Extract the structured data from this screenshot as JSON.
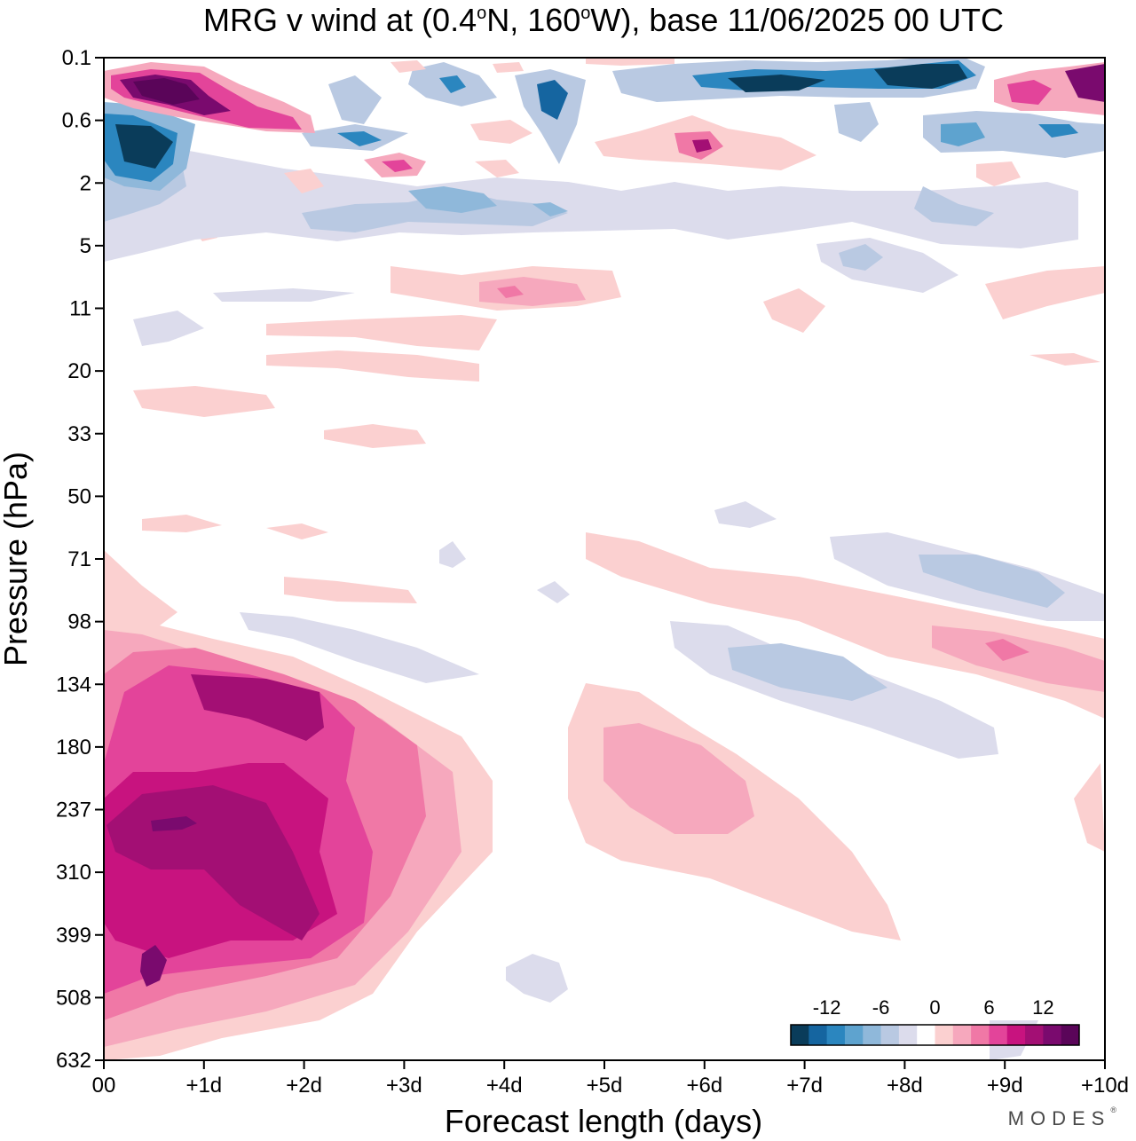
{
  "chart_data": {
    "type": "heatmap",
    "title": "MRG v wind at (0.4°N, 160°W),  base 11/06/2025  00 UTC",
    "title_parts": {
      "prefix": "MRG v wind at (0.4",
      "deg1": "o",
      "mid": "N, 160",
      "deg2": "o",
      "suffix": "W),  base 11/06/2025  00 UTC"
    },
    "xlabel": "Forecast length (days)",
    "ylabel": "Pressure (hPa)",
    "x_range_days": [
      0,
      10
    ],
    "x_tick_labels": [
      "00",
      "+1d",
      "+2d",
      "+3d",
      "+4d",
      "+5d",
      "+6d",
      "+7d",
      "+8d",
      "+9d",
      "+10d"
    ],
    "y_scale": "log-pressure (inverted)",
    "y_tick_labels": [
      "0.1",
      "0.6",
      "2",
      "5",
      "11",
      "20",
      "33",
      "50",
      "71",
      "98",
      "134",
      "180",
      "237",
      "310",
      "399",
      "508",
      "632"
    ],
    "colorbar": {
      "levels": [
        -16,
        -14,
        -12,
        -10,
        -8,
        -6,
        -4,
        -2,
        2,
        4,
        6,
        8,
        10,
        12,
        14,
        16
      ],
      "tick_labels": [
        "-12",
        "-6",
        "0",
        "6",
        "12"
      ],
      "tick_values": [
        -12,
        -6,
        0,
        6,
        12
      ],
      "colors": [
        "#0a3c5a",
        "#1565a0",
        "#2b86bf",
        "#5ea3cf",
        "#8fb8da",
        "#b9c9e2",
        "#dcdcec",
        "#ffffff",
        "#fbd0d0",
        "#f6a8bd",
        "#f078a6",
        "#e3449a",
        "#c8137f",
        "#a30f74",
        "#7a0a6e",
        "#5a0559"
      ]
    },
    "features": [
      {
        "name": "Upper negative core day 0.2-1.2",
        "day_range": [
          0.1,
          1.2
        ],
        "pressure_range_hPa": [
          0.6,
          3.5
        ],
        "peak": -16
      },
      {
        "name": "Upper positive core day 0.2-2",
        "day_range": [
          0.2,
          2.2
        ],
        "pressure_range_hPa": [
          0.12,
          0.7
        ],
        "peak": 16
      },
      {
        "name": "Negative band near 0.1 hPa day 5-8.5",
        "day_range": [
          4.5,
          8.5
        ],
        "pressure_range_hPa": [
          0.1,
          0.4
        ],
        "peak": -16
      },
      {
        "name": "Positive core near 0.1 hPa day 9.5-10",
        "day_range": [
          8.9,
          10
        ],
        "pressure_range_hPa": [
          0.1,
          0.5
        ],
        "peak": 16
      },
      {
        "name": "Negative band near 3 hPa day 2-5",
        "day_range": [
          1.8,
          5.4
        ],
        "pressure_range_hPa": [
          2,
          4.5
        ],
        "peak": -12
      },
      {
        "name": "Lower positive core 134-180 hPa day 1-2",
        "day_range": [
          0.9,
          2.2
        ],
        "pressure_range_hPa": [
          120,
          190
        ],
        "peak": 14
      },
      {
        "name": "Lower positive core 237-399 hPa day 0.2-2",
        "day_range": [
          0.2,
          2.2
        ],
        "pressure_range_hPa": [
          220,
          420
        ],
        "peak": 14
      },
      {
        "name": "Positive region 180-310 hPa day 5-7",
        "day_range": [
          4.8,
          8
        ],
        "pressure_range_hPa": [
          160,
          420
        ],
        "peak": 6
      },
      {
        "name": "Negative region 98-180 hPa day 5.5-8.5",
        "day_range": [
          5.6,
          8.5
        ],
        "pressure_range_hPa": [
          98,
          180
        ],
        "peak": -6
      },
      {
        "name": "Negative band 71-98 hPa day 7-10",
        "day_range": [
          7.2,
          10
        ],
        "pressure_range_hPa": [
          65,
          100
        ],
        "peak": -6
      }
    ]
  },
  "logo": {
    "text": "MODES",
    "mark": "®"
  }
}
